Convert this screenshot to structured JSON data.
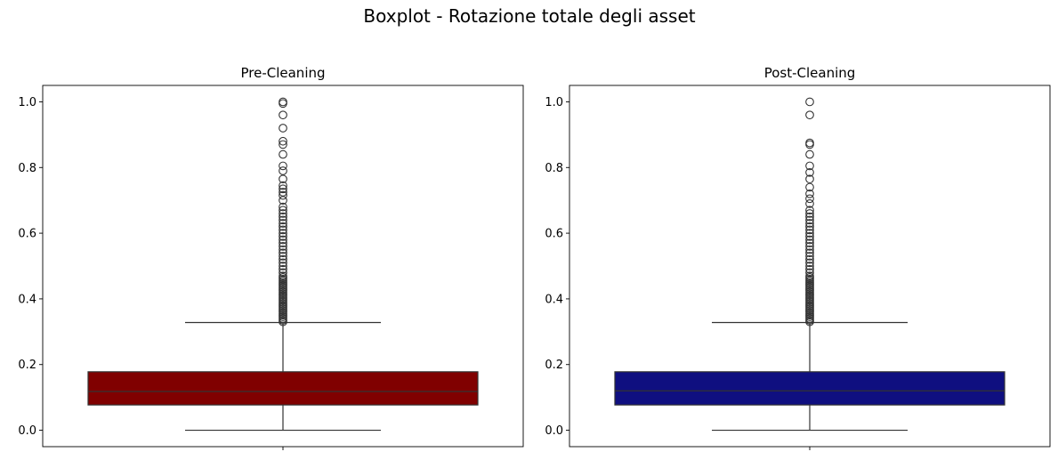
{
  "figure": {
    "title": "Boxplot - Rotazione totale degli asset"
  },
  "chart_data": [
    {
      "type": "box",
      "title": "Pre-Cleaning",
      "color": "#800000",
      "xlabel": "",
      "ylabel": "",
      "ylim": [
        -0.05,
        1.05
      ],
      "yticks": [
        0.0,
        0.2,
        0.4,
        0.6,
        0.8,
        1.0
      ],
      "ytick_labels": [
        "0.0",
        "0.2",
        "0.4",
        "0.6",
        "0.8",
        "1.0"
      ],
      "grid": false,
      "whisker_low": 0.0,
      "q1": 0.077,
      "median": 0.118,
      "q3": 0.178,
      "whisker_high": 0.328,
      "outliers": [
        0.33,
        0.335,
        0.34,
        0.345,
        0.35,
        0.355,
        0.36,
        0.365,
        0.37,
        0.375,
        0.38,
        0.385,
        0.39,
        0.395,
        0.4,
        0.405,
        0.41,
        0.415,
        0.42,
        0.425,
        0.43,
        0.435,
        0.44,
        0.445,
        0.45,
        0.455,
        0.46,
        0.465,
        0.47,
        0.48,
        0.49,
        0.5,
        0.51,
        0.52,
        0.53,
        0.54,
        0.55,
        0.56,
        0.57,
        0.58,
        0.59,
        0.6,
        0.61,
        0.62,
        0.63,
        0.64,
        0.65,
        0.66,
        0.67,
        0.68,
        0.7,
        0.715,
        0.725,
        0.735,
        0.745,
        0.765,
        0.79,
        0.805,
        0.84,
        0.87,
        0.88,
        0.92,
        0.96,
        0.995,
        1.0
      ]
    },
    {
      "type": "box",
      "title": "Post-Cleaning",
      "color": "#0f0f80",
      "xlabel": "",
      "ylabel": "",
      "ylim": [
        -0.05,
        1.05
      ],
      "yticks": [
        0.0,
        0.2,
        0.4,
        0.6,
        0.8,
        1.0
      ],
      "ytick_labels": [
        "0.0",
        "0.2",
        "0.4",
        "0.6",
        "0.8",
        "1.0"
      ],
      "grid": false,
      "whisker_low": 0.0,
      "q1": 0.077,
      "median": 0.12,
      "q3": 0.178,
      "whisker_high": 0.328,
      "outliers": [
        0.33,
        0.335,
        0.34,
        0.345,
        0.35,
        0.355,
        0.36,
        0.365,
        0.37,
        0.375,
        0.38,
        0.385,
        0.39,
        0.395,
        0.4,
        0.405,
        0.41,
        0.415,
        0.42,
        0.425,
        0.43,
        0.435,
        0.44,
        0.445,
        0.45,
        0.455,
        0.46,
        0.465,
        0.47,
        0.48,
        0.49,
        0.5,
        0.51,
        0.52,
        0.53,
        0.54,
        0.55,
        0.56,
        0.57,
        0.58,
        0.59,
        0.6,
        0.61,
        0.62,
        0.63,
        0.64,
        0.65,
        0.66,
        0.67,
        0.69,
        0.705,
        0.72,
        0.74,
        0.765,
        0.785,
        0.805,
        0.84,
        0.87,
        0.875,
        0.96,
        1.0
      ]
    }
  ]
}
